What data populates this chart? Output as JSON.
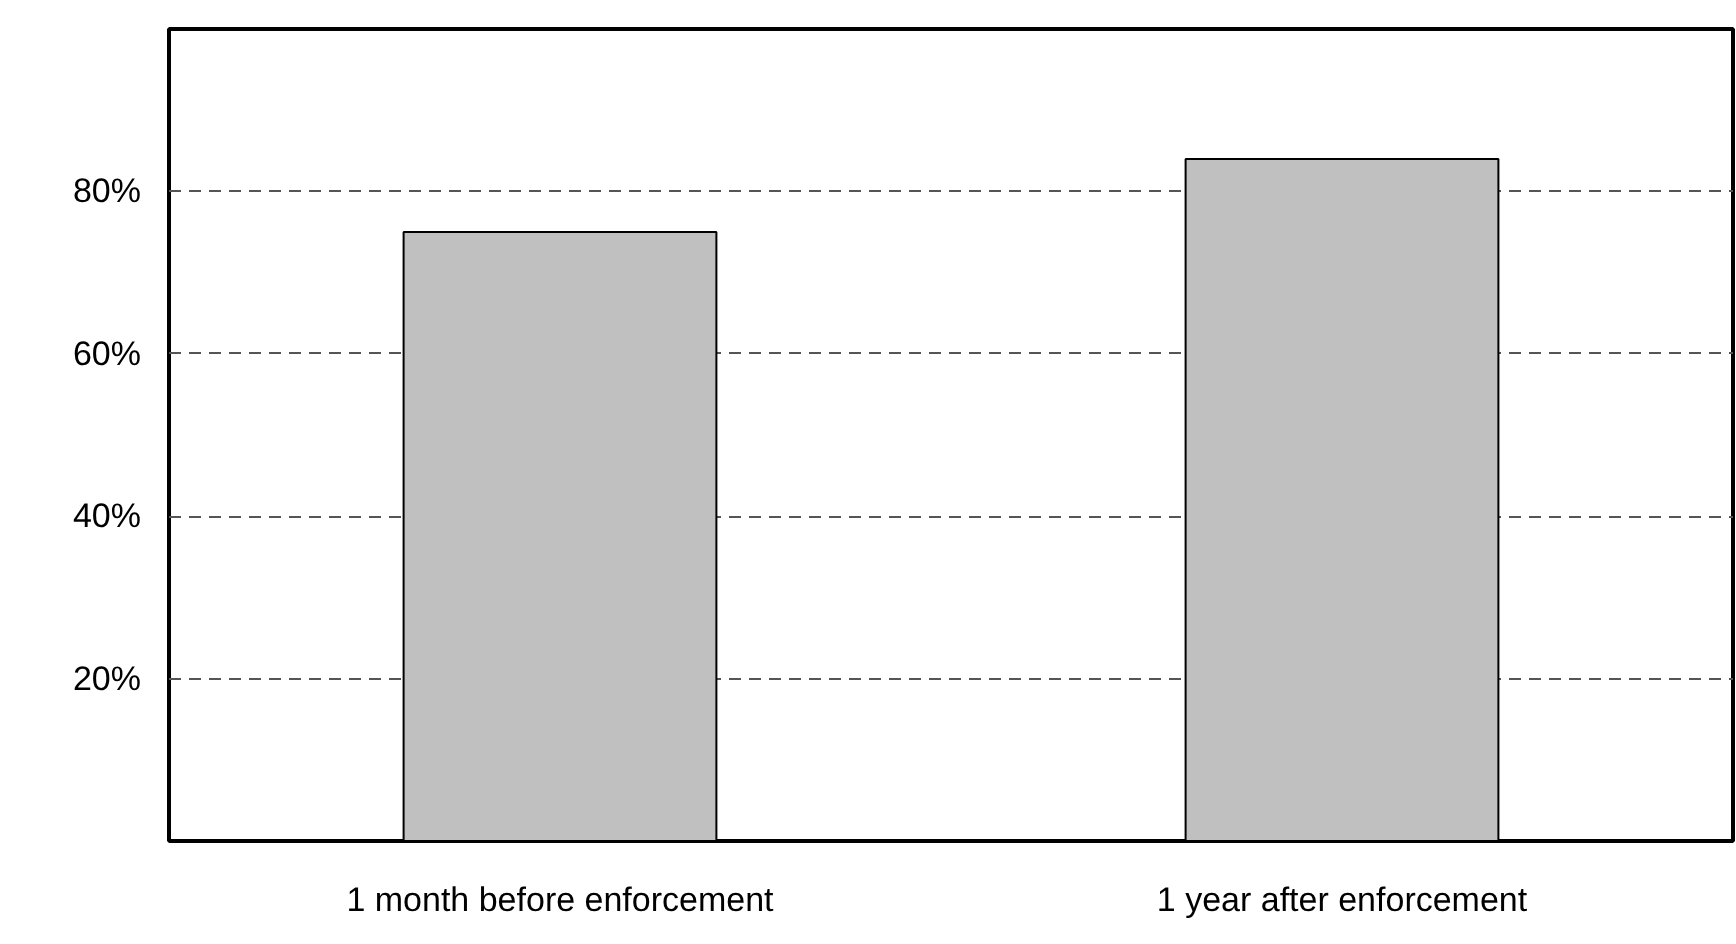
{
  "chart_data": {
    "type": "bar",
    "categories": [
      "1 month before enforcement",
      "1 year after enforcement"
    ],
    "values": [
      75,
      84
    ],
    "color": "#c0c0c0",
    "ylim": [
      0,
      100
    ],
    "yticks": [
      {
        "value": 20,
        "label": "20%"
      },
      {
        "value": 40,
        "label": "40%"
      },
      {
        "value": 60,
        "label": "60%"
      },
      {
        "value": 80,
        "label": "80%"
      }
    ],
    "grid": "y"
  }
}
